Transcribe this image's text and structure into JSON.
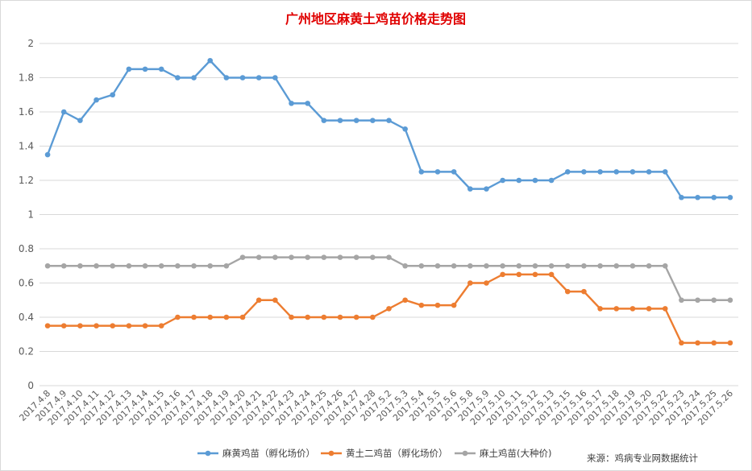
{
  "chart_data": {
    "type": "line",
    "title": "广州地区麻黄土鸡苗价格走势图",
    "xlabel": "",
    "ylabel": "",
    "ylim": [
      0,
      2
    ],
    "yticks": [
      "0",
      "0.2",
      "0.4",
      "0.6",
      "0.8",
      "1",
      "1.2",
      "1.4",
      "1.6",
      "1.8",
      "2"
    ],
    "grid": true,
    "legend_position": "bottom",
    "categories": [
      "2017.4.8",
      "2017.4.9",
      "2017.4.10",
      "2017.4.11",
      "2017.4.12",
      "2017.4.13",
      "2017.4.14",
      "2017.4.15",
      "2017.4.16",
      "2017.4.17",
      "2017.4.18",
      "2017.4.19",
      "2017.4.20",
      "2017.4.21",
      "2017.4.22",
      "2017.4.23",
      "2017.4.24",
      "2017.4.25",
      "2017.4.26",
      "2017.4.27",
      "2017.4.28",
      "2017.5.2",
      "2017.5.3",
      "2017.5.4",
      "2017.5.5",
      "2017.5.6",
      "2017.5.8",
      "2017.5.9",
      "2017.5.10",
      "2017.5.11",
      "2017.5.12",
      "2017.5.13",
      "2017.5.15",
      "2017.5.16",
      "2017.5.17",
      "2017.5.18",
      "2017.5.19",
      "2017.5.20",
      "2017.5.22",
      "2017.5.23",
      "2017.5.24",
      "2017.5.25",
      "2017.5.26"
    ],
    "series": [
      {
        "name": "麻黄鸡苗（孵化场价）",
        "color": "#5b9bd5",
        "values": [
          1.35,
          1.6,
          1.55,
          1.67,
          1.7,
          1.85,
          1.85,
          1.85,
          1.8,
          1.8,
          1.9,
          1.8,
          1.8,
          1.8,
          1.8,
          1.65,
          1.65,
          1.55,
          1.55,
          1.55,
          1.55,
          1.55,
          1.5,
          1.25,
          1.25,
          1.25,
          1.15,
          1.15,
          1.2,
          1.2,
          1.2,
          1.2,
          1.25,
          1.25,
          1.25,
          1.25,
          1.25,
          1.25,
          1.25,
          1.1,
          1.1,
          1.1,
          1.1
        ]
      },
      {
        "name": "黄土二鸡苗（孵化场价）",
        "color": "#ed7d31",
        "values": [
          0.35,
          0.35,
          0.35,
          0.35,
          0.35,
          0.35,
          0.35,
          0.35,
          0.4,
          0.4,
          0.4,
          0.4,
          0.4,
          0.5,
          0.5,
          0.4,
          0.4,
          0.4,
          0.4,
          0.4,
          0.4,
          0.45,
          0.5,
          0.47,
          0.47,
          0.47,
          0.6,
          0.6,
          0.65,
          0.65,
          0.65,
          0.65,
          0.55,
          0.55,
          0.45,
          0.45,
          0.45,
          0.45,
          0.45,
          0.25,
          0.25,
          0.25,
          0.25
        ]
      },
      {
        "name": "麻土鸡苗(大种价)",
        "color": "#a5a5a5",
        "values": [
          0.7,
          0.7,
          0.7,
          0.7,
          0.7,
          0.7,
          0.7,
          0.7,
          0.7,
          0.7,
          0.7,
          0.7,
          0.75,
          0.75,
          0.75,
          0.75,
          0.75,
          0.75,
          0.75,
          0.75,
          0.75,
          0.75,
          0.7,
          0.7,
          0.7,
          0.7,
          0.7,
          0.7,
          0.7,
          0.7,
          0.7,
          0.7,
          0.7,
          0.7,
          0.7,
          0.7,
          0.7,
          0.7,
          0.7,
          0.5,
          0.5,
          0.5,
          0.5
        ]
      }
    ],
    "source_note": "来源：鸡病专业网数据统计"
  }
}
